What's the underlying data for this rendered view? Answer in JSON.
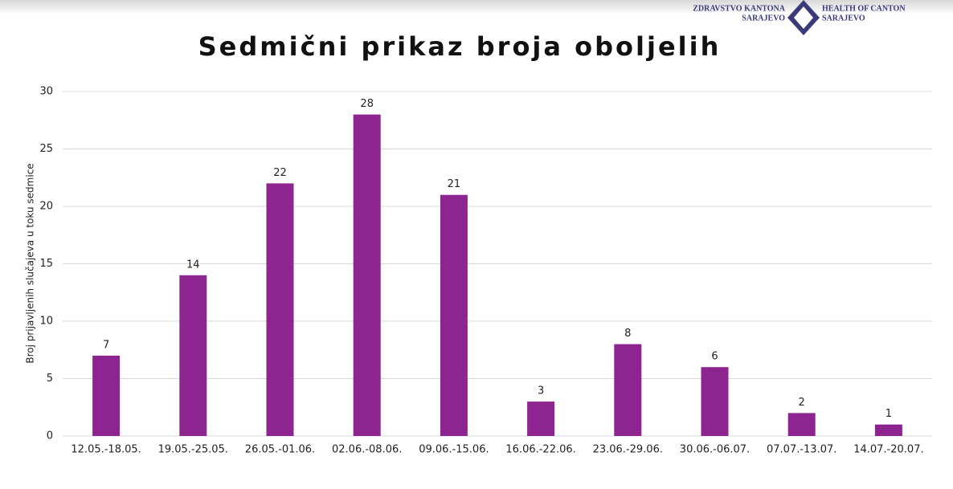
{
  "logo": {
    "left_lines": [
      "ZDRAVSTVO KANTONA",
      "SARAJEVO"
    ],
    "right_lines": [
      "HEALTH OF CANTON",
      "SARAJEVO"
    ]
  },
  "chart_data": {
    "type": "bar",
    "title": "Sedmični prikaz broja oboljelih",
    "y_label": "Broj prijavljenih slučajeva u toku sedmice",
    "categories": [
      "12.05.-18.05.",
      "19.05.-25.05.",
      "26.05.-01.06.",
      "02.06.-08.06.",
      "09.06.-15.06.",
      "16.06.-22.06.",
      "23.06.-29.06.",
      "30.06.-06.07.",
      "07.07.-13.07.",
      "14.07.-20.07."
    ],
    "values": [
      7,
      14,
      22,
      28,
      21,
      3,
      8,
      6,
      2,
      1
    ],
    "color": "#8e2490",
    "ylim": [
      0,
      30
    ],
    "yticks": [
      0,
      5,
      10,
      15,
      20,
      25,
      30
    ],
    "grid": true
  }
}
